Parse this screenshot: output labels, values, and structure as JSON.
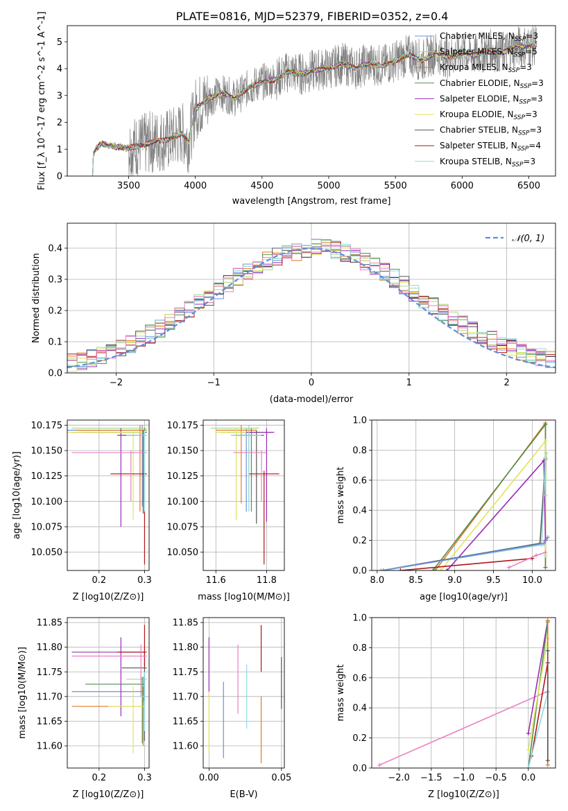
{
  "title": "PLATE=0816, MJD=52379, FIBERID=0352, z=0.4",
  "colors": {
    "chabrier_miles": "#6a8fdc",
    "salpeter_miles": "#a8d88a",
    "kroupa_miles": "#e07a1f",
    "chabrier_elodie": "#4f8f4f",
    "salpeter_elodie": "#9a2bb5",
    "kroupa_elodie": "#dfe55a",
    "chabrier_stelib": "#555555",
    "salpeter_stelib": "#b01515",
    "kroupa_stelib": "#8fd8e0",
    "stelib_pink": "#e880c0",
    "data_gray": "#808080",
    "normal_curve": "#5b8ee0"
  },
  "chart_data": [
    {
      "id": "spectrum",
      "type": "line",
      "xlabel": "wavelength [Angstrom, rest frame]",
      "ylabel": "Flux [f_λ 10^-17 erg cm^-2 s^-1 A^-1]",
      "xlim": [
        3040,
        6700
      ],
      "ylim": [
        0,
        5.6
      ],
      "xticks": [
        "3500",
        "4000",
        "4500",
        "5000",
        "5500",
        "6000",
        "6500"
      ],
      "yticks": [
        "0",
        "1",
        "2",
        "3",
        "4",
        "5"
      ],
      "legend_position": "top-right",
      "legend": [
        {
          "label": "Chabrier MILES, N",
          "sub": "SSP",
          "suffix": "=3",
          "color": "chabrier_miles"
        },
        {
          "label": "Salpeter MILES, N",
          "sub": "SSP",
          "suffix": "=5",
          "color": "salpeter_miles"
        },
        {
          "label": "Kroupa MILES, N",
          "sub": "SSP",
          "suffix": "=3",
          "color": "kroupa_miles"
        },
        {
          "label": "Chabrier ELODIE, N",
          "sub": "SSP",
          "suffix": "=3",
          "color": "chabrier_elodie"
        },
        {
          "label": "Salpeter ELODIE, N",
          "sub": "SSP",
          "suffix": "=3",
          "color": "salpeter_elodie"
        },
        {
          "label": "Kroupa ELODIE, N",
          "sub": "SSP",
          "suffix": "=3",
          "color": "kroupa_elodie"
        },
        {
          "label": "Chabrier STELIB, N",
          "sub": "SSP",
          "suffix": "=3",
          "color": "chabrier_stelib"
        },
        {
          "label": "Salpeter STELIB, N",
          "sub": "SSP",
          "suffix": "=4",
          "color": "salpeter_stelib"
        },
        {
          "label": "Kroupa STELIB, N",
          "sub": "SSP",
          "suffix": "=3",
          "color": "kroupa_stelib"
        }
      ],
      "continuum": [
        [
          3230,
          0
        ],
        [
          3235,
          0.8
        ],
        [
          3260,
          1.05
        ],
        [
          3300,
          1.2
        ],
        [
          3400,
          1.1
        ],
        [
          3500,
          1.05
        ],
        [
          3600,
          1.15
        ],
        [
          3700,
          1.3
        ],
        [
          3800,
          1.35
        ],
        [
          3900,
          1.6
        ],
        [
          3950,
          1.3
        ],
        [
          4000,
          2.5
        ],
        [
          4100,
          2.9
        ],
        [
          4200,
          3.1
        ],
        [
          4300,
          2.9
        ],
        [
          4400,
          3.3
        ],
        [
          4500,
          3.5
        ],
        [
          4600,
          3.6
        ],
        [
          4700,
          3.9
        ],
        [
          4800,
          3.8
        ],
        [
          4900,
          3.95
        ],
        [
          5000,
          4.0
        ],
        [
          5100,
          4.2
        ],
        [
          5200,
          4.0
        ],
        [
          5300,
          4.2
        ],
        [
          5400,
          4.1
        ],
        [
          5500,
          4.3
        ],
        [
          5600,
          4.5
        ],
        [
          5700,
          4.3
        ],
        [
          5800,
          4.6
        ],
        [
          5900,
          4.4
        ],
        [
          6000,
          4.6
        ],
        [
          6100,
          4.5
        ],
        [
          6200,
          4.7
        ],
        [
          6300,
          4.6
        ],
        [
          6400,
          4.8
        ],
        [
          6500,
          4.85
        ],
        [
          6560,
          4.9
        ]
      ]
    },
    {
      "id": "residuals",
      "type": "bar",
      "xlabel": "(data-model)/error",
      "ylabel": "Normed distribution",
      "xlim": [
        -2.5,
        2.5
      ],
      "ylim": [
        0,
        0.48
      ],
      "xticks": [
        "−2",
        "−1",
        "0",
        "1",
        "2"
      ],
      "yticks": [
        "0.0",
        "0.1",
        "0.2",
        "0.3",
        "0.4"
      ],
      "grid": true,
      "legend_position": "top-right",
      "legend": [
        {
          "label": "𝒩(0, 1)",
          "color": "normal_curve",
          "style": "dashed"
        }
      ],
      "bin_width": 0.1
    },
    {
      "id": "age_vs_Z",
      "type": "scatter",
      "xlabel": "Z [log10(Z/Z⊙)]",
      "ylabel": "age [log10(age/yr)]",
      "xlim": [
        0.13,
        0.31
      ],
      "ylim": [
        10.032,
        10.18
      ],
      "xticks": [
        "0.2",
        "0.3"
      ],
      "yticks": [
        "10.050",
        "10.075",
        "10.100",
        "10.125",
        "10.150",
        "10.175"
      ],
      "grid": true,
      "points": [
        {
          "color": "chabrier_miles",
          "x": 0.295,
          "y": 10.17,
          "xerr": [
            0.13,
            0.305
          ],
          "yerr": [
            10.095,
            10.175
          ]
        },
        {
          "color": "salpeter_miles",
          "x": 0.3,
          "y": 10.172,
          "xerr": [
            0.14,
            0.305
          ],
          "yerr": [
            10.1,
            10.175
          ]
        },
        {
          "color": "kroupa_miles",
          "x": 0.29,
          "y": 10.17,
          "xerr": [
            0.15,
            0.305
          ],
          "yerr": [
            10.09,
            10.175
          ]
        },
        {
          "color": "chabrier_elodie",
          "x": 0.3,
          "y": 10.168,
          "xerr": [
            0.17,
            0.305
          ],
          "yerr": [
            10.1,
            10.172
          ]
        },
        {
          "color": "salpeter_elodie",
          "x": 0.248,
          "y": 10.168,
          "xerr": [
            0.14,
            0.3
          ],
          "yerr": [
            10.075,
            10.172
          ]
        },
        {
          "color": "kroupa_elodie",
          "x": 0.275,
          "y": 10.168,
          "xerr": [
            0.13,
            0.3
          ],
          "yerr": [
            10.082,
            10.172
          ]
        },
        {
          "color": "chabrier_stelib",
          "x": 0.297,
          "y": 10.165,
          "xerr": [
            0.24,
            0.303
          ],
          "yerr": [
            10.088,
            10.17
          ]
        },
        {
          "color": "salpeter_stelib",
          "x": 0.3,
          "y": 10.127,
          "xerr": [
            0.225,
            0.305
          ],
          "yerr": [
            10.038,
            10.13
          ]
        },
        {
          "color": "stelib_pink",
          "x": 0.27,
          "y": 10.148,
          "xerr": [
            0.14,
            0.305
          ],
          "yerr": [
            10.1,
            10.15
          ]
        },
        {
          "color": "kroupa_stelib",
          "x": 0.3,
          "y": 10.165,
          "xerr": [
            0.26,
            0.305
          ],
          "yerr": [
            10.09,
            10.17
          ]
        }
      ]
    },
    {
      "id": "age_vs_mass",
      "type": "scatter",
      "xlabel": "mass [log10(M/M⊙)]",
      "xlim": [
        11.55,
        11.87
      ],
      "ylim": [
        10.032,
        10.18
      ],
      "xticks": [
        "11.6",
        "11.8"
      ],
      "yticks": [
        "10.050",
        "10.075",
        "10.100",
        "10.125",
        "10.150",
        "10.175"
      ],
      "grid": true,
      "points": [
        {
          "color": "chabrier_miles",
          "x": 11.72,
          "y": 10.165,
          "xerr": [
            11.66,
            11.75
          ],
          "yerr": [
            10.09,
            10.172
          ]
        },
        {
          "color": "salpeter_miles",
          "x": 11.73,
          "y": 10.172,
          "xerr": [
            11.58,
            11.77
          ],
          "yerr": [
            10.1,
            10.175
          ]
        },
        {
          "color": "kroupa_miles",
          "x": 11.7,
          "y": 10.17,
          "xerr": [
            11.6,
            11.76
          ],
          "yerr": [
            10.098,
            10.175
          ]
        },
        {
          "color": "chabrier_elodie",
          "x": 11.74,
          "y": 10.168,
          "xerr": [
            11.62,
            11.82
          ],
          "yerr": [
            10.09,
            10.172
          ]
        },
        {
          "color": "salpeter_elodie",
          "x": 11.8,
          "y": 10.168,
          "xerr": [
            11.7,
            11.83
          ],
          "yerr": [
            10.08,
            10.172
          ]
        },
        {
          "color": "kroupa_elodie",
          "x": 11.68,
          "y": 10.168,
          "xerr": [
            11.6,
            11.72
          ],
          "yerr": [
            10.082,
            10.172
          ]
        },
        {
          "color": "chabrier_stelib",
          "x": 11.76,
          "y": 10.165,
          "xerr": [
            11.68,
            11.79
          ],
          "yerr": [
            10.078,
            10.17
          ]
        },
        {
          "color": "salpeter_stelib",
          "x": 11.79,
          "y": 10.127,
          "xerr": [
            11.73,
            11.85
          ],
          "yerr": [
            10.038,
            10.13
          ]
        },
        {
          "color": "stelib_pink",
          "x": 11.78,
          "y": 10.148,
          "xerr": [
            11.67,
            11.8
          ],
          "yerr": [
            10.1,
            10.15
          ]
        },
        {
          "color": "kroupa_stelib",
          "x": 11.73,
          "y": 10.165,
          "xerr": [
            11.66,
            11.78
          ],
          "yerr": [
            10.09,
            10.17
          ]
        }
      ]
    },
    {
      "id": "weight_vs_age",
      "type": "line",
      "xlabel": "age [log10(age/yr)]",
      "ylabel": "mass weight",
      "xlim": [
        7.93,
        10.3
      ],
      "ylim": [
        0,
        1.0
      ],
      "xticks": [
        "8.0",
        "8.5",
        "9.0",
        "9.5",
        "10.0"
      ],
      "yticks": [
        "0.0",
        "0.2",
        "0.4",
        "0.6",
        "0.8",
        "1.0"
      ],
      "grid": true,
      "series": [
        {
          "color": "kroupa_miles",
          "x": [
            8.75,
            10.17,
            10.17
          ],
          "y": [
            0.0,
            0.98,
            0.02
          ]
        },
        {
          "color": "chabrier_elodie",
          "x": [
            8.72,
            10.17,
            10.17
          ],
          "y": [
            0.0,
            0.97,
            0.02
          ]
        },
        {
          "color": "kroupa_elodie",
          "x": [
            8.82,
            10.17,
            10.17
          ],
          "y": [
            0.0,
            0.86,
            0.1
          ]
        },
        {
          "color": "salpeter_elodie",
          "x": [
            8.9,
            10.15,
            10.17
          ],
          "y": [
            0.0,
            0.73,
            0.2
          ]
        },
        {
          "color": "chabrier_stelib",
          "x": [
            8.05,
            10.1,
            10.17
          ],
          "y": [
            0.0,
            0.18,
            0.74
          ]
        },
        {
          "color": "kroupa_stelib",
          "x": [
            8.05,
            10.12,
            10.17
          ],
          "y": [
            0.0,
            0.17,
            0.75
          ]
        },
        {
          "color": "chabrier_miles",
          "x": [
            8.08,
            10.15,
            10.2
          ],
          "y": [
            0.0,
            0.18,
            0.22
          ]
        },
        {
          "color": "salpeter_stelib",
          "x": [
            8.3,
            10.0
          ],
          "y": [
            0.0,
            0.08
          ]
        },
        {
          "color": "stelib_pink",
          "x": [
            9.7,
            10.05,
            10.17
          ],
          "y": [
            0.02,
            0.1,
            0.12
          ]
        },
        {
          "color": "salpeter_miles",
          "x": [
            10.17,
            10.18
          ],
          "y": [
            0.5,
            0.78
          ]
        }
      ]
    },
    {
      "id": "mass_vs_Z",
      "type": "scatter",
      "xlabel": "Z [log10(Z/Z⊙)]",
      "ylabel": "mass [log10(M/M⊙)]",
      "xlim": [
        0.13,
        0.31
      ],
      "ylim": [
        11.555,
        11.86
      ],
      "xticks": [
        "0.2",
        "0.3"
      ],
      "yticks": [
        "11.60",
        "11.65",
        "11.70",
        "11.75",
        "11.80",
        "11.85"
      ],
      "grid": true,
      "points": [
        {
          "color": "chabrier_miles",
          "x": 0.298,
          "y": 11.71,
          "xerr": [
            0.14,
            0.3
          ],
          "yerr": [
            11.69,
            11.74
          ]
        },
        {
          "color": "salpeter_miles",
          "x": 0.3,
          "y": 11.735,
          "xerr": [
            0.26,
            0.305
          ],
          "yerr": [
            11.7,
            11.77
          ]
        },
        {
          "color": "kroupa_miles",
          "x": 0.297,
          "y": 11.68,
          "xerr": [
            0.14,
            0.3
          ],
          "yerr": [
            11.6,
            11.72
          ]
        },
        {
          "color": "chabrier_elodie",
          "x": 0.295,
          "y": 11.725,
          "xerr": [
            0.17,
            0.3
          ],
          "yerr": [
            11.605,
            11.74
          ]
        },
        {
          "color": "salpeter_elodie",
          "x": 0.248,
          "y": 11.79,
          "xerr": [
            0.14,
            0.3
          ],
          "yerr": [
            11.66,
            11.82
          ]
        },
        {
          "color": "kroupa_elodie",
          "x": 0.275,
          "y": 11.68,
          "xerr": [
            0.22,
            0.3
          ],
          "yerr": [
            11.585,
            11.72
          ]
        },
        {
          "color": "chabrier_stelib",
          "x": 0.3,
          "y": 11.758,
          "xerr": [
            0.25,
            0.305
          ],
          "yerr": [
            11.61,
            11.8
          ]
        },
        {
          "color": "salpeter_stelib",
          "x": 0.3,
          "y": 11.79,
          "xerr": [
            0.24,
            0.305
          ],
          "yerr": [
            11.76,
            11.845
          ]
        },
        {
          "color": "stelib_pink",
          "x": 0.292,
          "y": 11.782,
          "xerr": [
            0.14,
            0.305
          ],
          "yerr": [
            11.7,
            11.805
          ]
        },
        {
          "color": "kroupa_stelib",
          "x": 0.3,
          "y": 11.7,
          "xerr": [
            0.29,
            0.305
          ],
          "yerr": [
            11.63,
            11.75
          ]
        }
      ]
    },
    {
      "id": "mass_vs_EBV",
      "type": "scatter",
      "xlabel": "E(B-V)",
      "xlim": [
        -0.004,
        0.052
      ],
      "ylim": [
        11.555,
        11.86
      ],
      "xticks": [
        "0.00",
        "0.05"
      ],
      "yticks": [
        "11.60",
        "11.65",
        "11.70",
        "11.75",
        "11.80",
        "11.85"
      ],
      "grid": true,
      "points": [
        {
          "color": "salpeter_elodie",
          "x": 0.0,
          "yerr": [
            11.71,
            11.82
          ]
        },
        {
          "color": "kroupa_elodie",
          "x": 0.0,
          "yerr": [
            11.585,
            11.71
          ]
        },
        {
          "color": "chabrier_miles",
          "x": 0.01,
          "yerr": [
            11.575,
            11.73
          ]
        },
        {
          "color": "stelib_pink",
          "x": 0.02,
          "yerr": [
            11.665,
            11.805
          ]
        },
        {
          "color": "kroupa_stelib",
          "x": 0.026,
          "yerr": [
            11.635,
            11.765
          ]
        },
        {
          "color": "salpeter_stelib",
          "x": 0.036,
          "yerr": [
            11.75,
            11.845
          ]
        },
        {
          "color": "kroupa_miles",
          "x": 0.036,
          "yerr": [
            11.565,
            11.7
          ]
        },
        {
          "color": "chabrier_stelib",
          "x": 0.05,
          "yerr": [
            11.675,
            11.78
          ]
        }
      ]
    },
    {
      "id": "weight_vs_Z",
      "type": "line",
      "xlabel": "Z [log10(Z/Z⊙)]",
      "ylabel": "mass weight",
      "xlim": [
        -2.42,
        0.42
      ],
      "ylim": [
        0,
        1.0
      ],
      "xticks": [
        "−2.0",
        "−1.5",
        "−1.0",
        "−0.5",
        "0.0"
      ],
      "yticks": [
        "0.0",
        "0.2",
        "0.4",
        "0.6",
        "0.8",
        "1.0"
      ],
      "grid": true,
      "series": [
        {
          "color": "stelib_pink",
          "x": [
            -2.3,
            0.3
          ],
          "y": [
            0.02,
            0.51
          ]
        },
        {
          "color": "salpeter_elodie",
          "x": [
            0.0,
            0.3
          ],
          "y": [
            0.23,
            0.98
          ]
        },
        {
          "color": "chabrier_elodie",
          "x": [
            0.0,
            0.3
          ],
          "y": [
            0.0,
            0.97
          ]
        },
        {
          "color": "kroupa_elodie",
          "x": [
            0.0,
            0.3
          ],
          "y": [
            0.12,
            0.86
          ]
        },
        {
          "color": "salpeter_stelib",
          "x": [
            0.05,
            0.3
          ],
          "y": [
            0.08,
            0.7
          ]
        },
        {
          "color": "kroupa_stelib",
          "x": [
            0.0,
            0.3
          ],
          "y": [
            0.0,
            0.5
          ]
        },
        {
          "color": "kroupa_miles",
          "x": [
            0.3,
            0.3
          ],
          "y": [
            0.02,
            0.98
          ]
        },
        {
          "color": "chabrier_stelib",
          "x": [
            0.3,
            0.3
          ],
          "y": [
            0.05,
            0.78
          ]
        }
      ]
    }
  ]
}
